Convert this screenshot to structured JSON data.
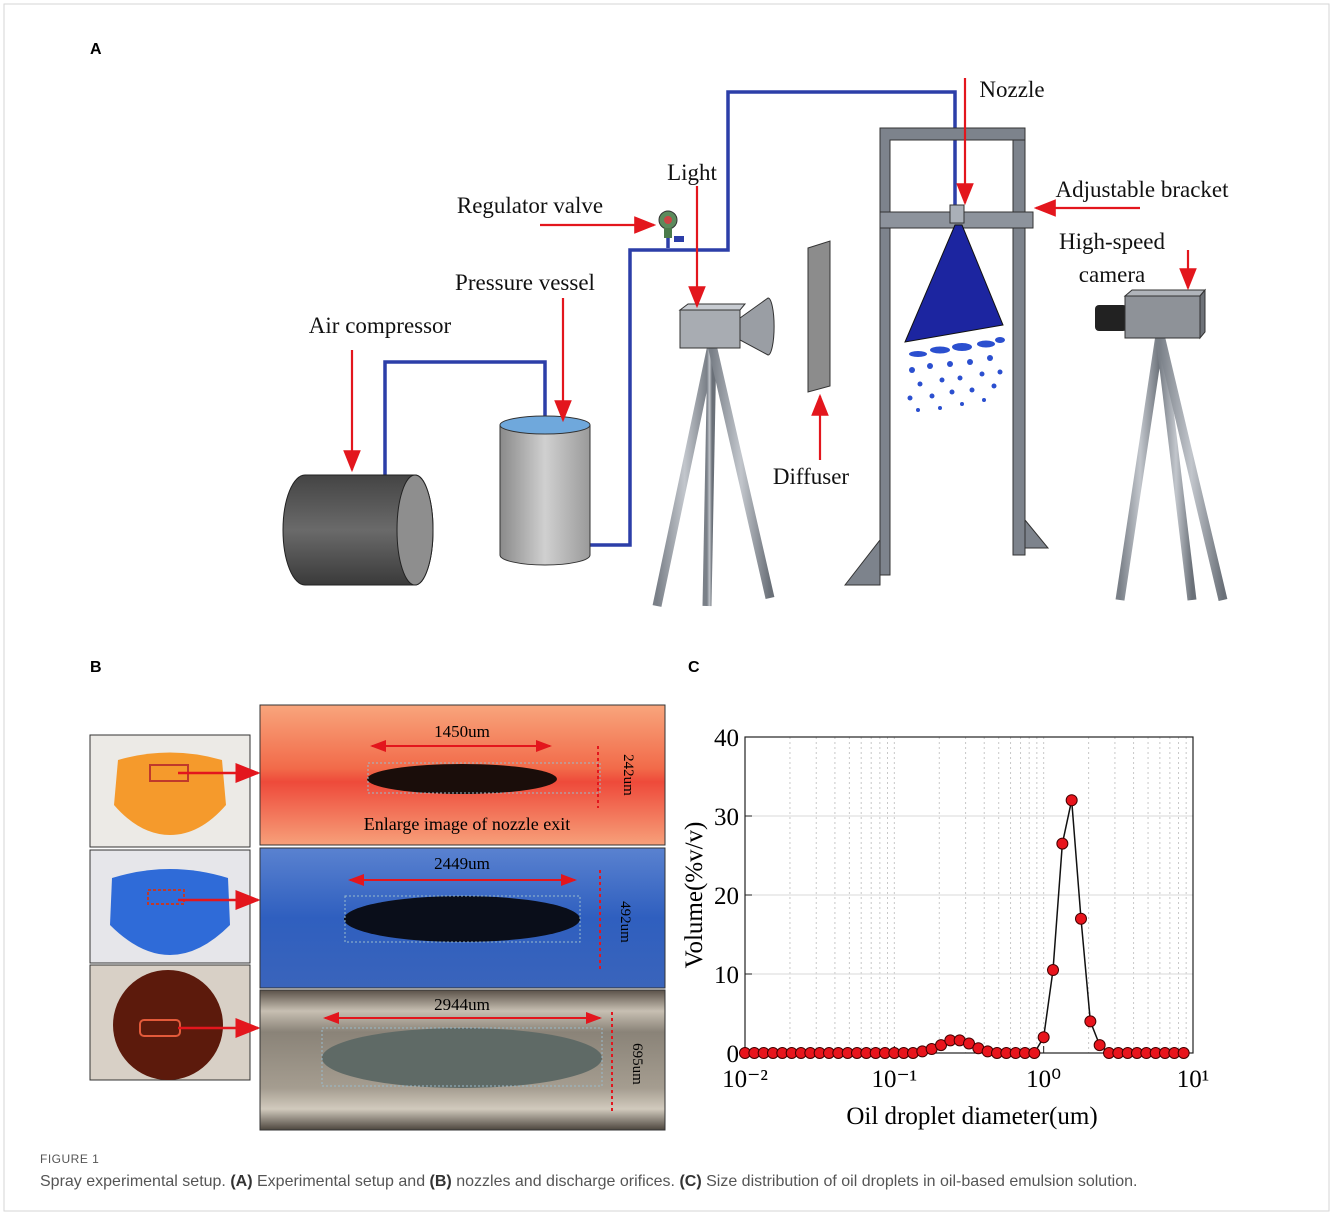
{
  "panels": {
    "a": "A",
    "b": "B",
    "c": "C"
  },
  "diagram": {
    "nozzle": "Nozzle",
    "light": "Light",
    "regulator_valve": "Regulator valve",
    "adjustable_bracket": "Adjustable bracket",
    "high_speed_camera": [
      "High-speed",
      "camera"
    ],
    "pressure_vessel": "Pressure vessel",
    "air_compressor": "Air compressor",
    "diffuser": "Diffuser"
  },
  "orifices": [
    {
      "width": "1450um",
      "height": "242um",
      "note": "Enlarge image of nozzle exit"
    },
    {
      "width": "2449um",
      "height": "492um"
    },
    {
      "width": "2944um",
      "height": "695um"
    }
  ],
  "chart_data": {
    "type": "line",
    "xlabel": "Oil droplet diameter(um)",
    "ylabel": "Volume(%v/v)",
    "xscale": "log",
    "grid": true,
    "color": "#e8141c",
    "xlim": [
      0.01,
      10
    ],
    "ylim": [
      0,
      40
    ],
    "xticks": [
      {
        "value": 0.01,
        "label": "10⁻²"
      },
      {
        "value": 0.1,
        "label": "10⁻¹"
      },
      {
        "value": 1,
        "label": "10⁰"
      },
      {
        "value": 10,
        "label": "10¹"
      }
    ],
    "xticks_minor": [
      0.02,
      0.03,
      0.04,
      0.05,
      0.06,
      0.07,
      0.08,
      0.09,
      0.2,
      0.3,
      0.4,
      0.5,
      0.6,
      0.7,
      0.8,
      0.9,
      2,
      3,
      4,
      5,
      6,
      7,
      8,
      9
    ],
    "yticks": [
      0,
      10,
      20,
      30,
      40
    ],
    "x": [
      0.01,
      0.01155,
      0.01334,
      0.0154,
      0.01778,
      0.02054,
      0.02371,
      0.02738,
      0.03162,
      0.03652,
      0.04217,
      0.0487,
      0.05623,
      0.06494,
      0.07499,
      0.0866,
      0.1,
      0.1155,
      0.1334,
      0.154,
      0.1778,
      0.2054,
      0.2371,
      0.2738,
      0.3162,
      0.3652,
      0.4217,
      0.487,
      0.5623,
      0.6494,
      0.7499,
      0.866,
      1,
      1.155,
      1.334,
      1.54,
      1.778,
      2.054,
      2.371,
      2.738,
      3.162,
      3.652,
      4.217,
      4.87,
      5.623,
      6.494,
      7.499,
      8.66
    ],
    "values": [
      0,
      0,
      0,
      0,
      0,
      0,
      0,
      0,
      0,
      0,
      0,
      0,
      0,
      0,
      0,
      0,
      0,
      0,
      0,
      0.2,
      0.5,
      1.0,
      1.6,
      1.6,
      1.2,
      0.6,
      0.2,
      0,
      0,
      0,
      0,
      0,
      2,
      10.5,
      26.5,
      32,
      17,
      4,
      1,
      0,
      0,
      0,
      0,
      0,
      0,
      0,
      0,
      0
    ]
  },
  "caption": {
    "label": "FIGURE 1",
    "parts": [
      "Spray experimental setup. ",
      "(A)",
      " Experimental setup and ",
      "(B)",
      " nozzles and discharge orifices. ",
      "(C)",
      " Size distribution of oil droplets in oil-based emulsion solution."
    ]
  }
}
